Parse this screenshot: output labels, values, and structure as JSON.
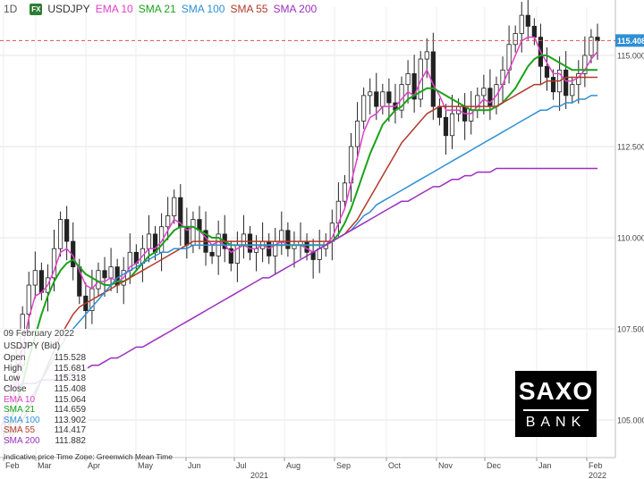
{
  "header": {
    "timeframe": "1D",
    "badge": "FX",
    "symbol": "USDJPY",
    "indicators": [
      {
        "label": "EMA 10",
        "color": "#e040c8"
      },
      {
        "label": "SMA 21",
        "color": "#1aa31a"
      },
      {
        "label": "SMA 100",
        "color": "#2f8fd4"
      },
      {
        "label": "SMA 55",
        "color": "#b23a2a"
      },
      {
        "label": "SMA 200",
        "color": "#9b2fc0"
      }
    ]
  },
  "price_tag": {
    "value": "115.408",
    "color": "#2f8fd4"
  },
  "info_panel": {
    "date": "09 February 2022",
    "title": "USDJPY (Bid)",
    "rows": [
      {
        "label": "Open",
        "value": "115.528"
      },
      {
        "label": "High",
        "value": "115.681"
      },
      {
        "label": "Low",
        "value": "115.318"
      },
      {
        "label": "Close",
        "value": "115.408"
      },
      {
        "label": "EMA 10",
        "value": "115.064"
      },
      {
        "label": "SMA 21",
        "value": "114.659"
      },
      {
        "label": "SMA 100",
        "value": "113.902"
      },
      {
        "label": "SMA 55",
        "value": "114.417"
      },
      {
        "label": "SMA 200",
        "value": "111.882"
      }
    ]
  },
  "footnote": "Indicative price    Time Zone: Greenwich Mean Time",
  "logo": {
    "line1": "SAXO",
    "line2": "BANK"
  },
  "chart_data": {
    "type": "line",
    "symbol": "USDJPY",
    "timeframe": "1D",
    "ylim": [
      104.3,
      117.3
    ],
    "y_ticks": [
      "115.000",
      "112.500",
      "110.000",
      "107.500",
      "105.000"
    ],
    "y_tick_values": [
      115.0,
      112.5,
      110.0,
      107.5,
      105.0
    ],
    "x_month_labels": [
      "Feb",
      "Mar",
      "Apr",
      "May",
      "Jun",
      "Jul",
      "Aug",
      "Sep",
      "Oct",
      "Nov",
      "Dec",
      "Jan",
      "Feb"
    ],
    "x_year_labels": [
      {
        "label": "2021",
        "after_month": 5
      },
      {
        "label": "2022",
        "after_month": 11
      }
    ],
    "last_price": 115.408,
    "close_path": [
      104.9,
      105.6,
      106.5,
      107.9,
      108.7,
      109.1,
      108.5,
      108.9,
      109.7,
      110.5,
      109.9,
      109.2,
      108.4,
      108.0,
      108.6,
      109.1,
      108.9,
      109.2,
      108.7,
      109.1,
      109.6,
      109.3,
      109.7,
      110.1,
      109.6,
      110.3,
      110.6,
      111.1,
      110.3,
      109.8,
      110.5,
      110.2,
      109.6,
      109.5,
      110.1,
      109.7,
      109.3,
      109.8,
      110.1,
      109.6,
      109.7,
      109.9,
      109.5,
      109.9,
      110.2,
      109.7,
      109.8,
      109.9,
      109.6,
      109.4,
      109.7,
      109.9,
      110.4,
      111.0,
      111.5,
      112.5,
      113.2,
      113.9,
      114.0,
      113.6,
      114.0,
      113.7,
      113.5,
      114.2,
      114.5,
      113.8,
      114.9,
      115.1,
      113.6,
      113.3,
      112.8,
      113.4,
      113.6,
      113.2,
      113.5,
      113.9,
      114.1,
      113.6,
      114.2,
      114.6,
      115.3,
      115.6,
      116.1,
      115.8,
      115.5,
      114.7,
      114.4,
      114.0,
      114.6,
      113.9,
      114.2,
      114.5,
      115.0,
      115.5,
      115.4
    ],
    "series": [
      {
        "name": "EMA 10",
        "color": "#e040c8",
        "values": [
          104.8,
          105.3,
          106.0,
          107.0,
          107.8,
          108.4,
          108.5,
          108.7,
          109.1,
          109.6,
          109.7,
          109.5,
          109.1,
          108.7,
          108.6,
          108.8,
          108.8,
          108.9,
          108.8,
          108.9,
          109.2,
          109.3,
          109.5,
          109.7,
          109.7,
          109.9,
          110.2,
          110.5,
          110.4,
          110.2,
          110.3,
          110.2,
          110.0,
          109.8,
          109.9,
          109.8,
          109.6,
          109.7,
          109.8,
          109.7,
          109.7,
          109.8,
          109.7,
          109.8,
          109.9,
          109.8,
          109.8,
          109.8,
          109.7,
          109.6,
          109.7,
          109.8,
          110.0,
          110.4,
          110.8,
          111.5,
          112.2,
          112.9,
          113.3,
          113.4,
          113.6,
          113.6,
          113.6,
          113.8,
          114.0,
          113.9,
          114.3,
          114.6,
          114.2,
          113.9,
          113.5,
          113.5,
          113.5,
          113.4,
          113.4,
          113.6,
          113.8,
          113.7,
          113.9,
          114.2,
          114.6,
          115.0,
          115.4,
          115.5,
          115.5,
          115.1,
          114.8,
          114.5,
          114.5,
          114.3,
          114.3,
          114.4,
          114.6,
          114.9,
          115.1
        ]
      },
      {
        "name": "SMA 21",
        "color": "#1aa31a",
        "values": [
          104.6,
          104.9,
          105.4,
          106.0,
          106.7,
          107.3,
          107.9,
          108.4,
          108.8,
          109.1,
          109.3,
          109.4,
          109.2,
          109.0,
          108.9,
          108.8,
          108.7,
          108.7,
          108.8,
          108.8,
          108.9,
          109.1,
          109.3,
          109.5,
          109.6,
          109.8,
          110.0,
          110.2,
          110.3,
          110.3,
          110.3,
          110.2,
          110.1,
          110.0,
          110.0,
          109.9,
          109.8,
          109.8,
          109.8,
          109.8,
          109.8,
          109.8,
          109.8,
          109.8,
          109.8,
          109.8,
          109.8,
          109.8,
          109.8,
          109.8,
          109.8,
          109.8,
          109.9,
          110.1,
          110.4,
          110.8,
          111.3,
          111.8,
          112.3,
          112.7,
          113.1,
          113.3,
          113.5,
          113.6,
          113.8,
          113.9,
          114.0,
          114.1,
          114.1,
          114.0,
          113.9,
          113.8,
          113.7,
          113.6,
          113.5,
          113.5,
          113.5,
          113.5,
          113.6,
          113.7,
          113.9,
          114.1,
          114.4,
          114.7,
          114.9,
          115.0,
          115.0,
          114.9,
          114.8,
          114.7,
          114.6,
          114.6,
          114.6,
          114.6,
          114.6
        ]
      },
      {
        "name": "SMA 55",
        "color": "#b23a2a",
        "values": [
          104.3,
          104.5,
          104.7,
          105.0,
          105.3,
          105.7,
          106.1,
          106.5,
          106.9,
          107.3,
          107.6,
          107.9,
          108.1,
          108.2,
          108.3,
          108.4,
          108.5,
          108.6,
          108.7,
          108.8,
          108.9,
          109.0,
          109.1,
          109.2,
          109.3,
          109.4,
          109.5,
          109.6,
          109.7,
          109.8,
          109.9,
          109.9,
          109.9,
          109.9,
          109.9,
          109.9,
          109.9,
          109.9,
          109.9,
          109.9,
          109.9,
          109.9,
          109.9,
          109.9,
          109.9,
          109.9,
          109.9,
          109.9,
          109.9,
          109.9,
          109.9,
          109.9,
          109.9,
          110.0,
          110.1,
          110.3,
          110.5,
          110.8,
          111.1,
          111.4,
          111.7,
          112.0,
          112.3,
          112.6,
          112.8,
          113.0,
          113.2,
          113.4,
          113.5,
          113.6,
          113.6,
          113.6,
          113.6,
          113.6,
          113.6,
          113.6,
          113.6,
          113.6,
          113.6,
          113.7,
          113.8,
          113.9,
          114.0,
          114.1,
          114.2,
          114.2,
          114.3,
          114.3,
          114.3,
          114.4,
          114.4,
          114.4,
          114.4,
          114.4,
          114.4
        ]
      },
      {
        "name": "SMA 100",
        "color": "#2f8fd4",
        "values": [
          104.3,
          104.6,
          104.9,
          105.2,
          105.5,
          105.8,
          106.1,
          106.4,
          106.7,
          107.0,
          107.3,
          107.5,
          107.7,
          107.9,
          108.1,
          108.3,
          108.5,
          108.7,
          108.9,
          109.0,
          109.1,
          109.2,
          109.3,
          109.4,
          109.5,
          109.6,
          109.6,
          109.7,
          109.7,
          109.7,
          109.8,
          109.8,
          109.8,
          109.8,
          109.8,
          109.8,
          109.8,
          109.8,
          109.8,
          109.8,
          109.8,
          109.8,
          109.8,
          109.8,
          109.8,
          109.8,
          109.8,
          109.8,
          109.8,
          109.8,
          109.8,
          109.8,
          109.9,
          110.0,
          110.1,
          110.2,
          110.4,
          110.6,
          110.7,
          110.9,
          111.0,
          111.1,
          111.2,
          111.3,
          111.4,
          111.5,
          111.6,
          111.7,
          111.8,
          111.9,
          112.0,
          112.1,
          112.2,
          112.3,
          112.4,
          112.5,
          112.6,
          112.7,
          112.8,
          112.9,
          113.0,
          113.1,
          113.2,
          113.3,
          113.4,
          113.5,
          113.5,
          113.6,
          113.6,
          113.7,
          113.7,
          113.8,
          113.8,
          113.9,
          113.9
        ]
      },
      {
        "name": "SMA 200",
        "color": "#9b2fc0",
        "values": [
          105.9,
          105.9,
          105.9,
          106.0,
          106.0,
          106.0,
          106.1,
          106.1,
          106.1,
          106.2,
          106.2,
          106.3,
          106.3,
          106.4,
          106.5,
          106.5,
          106.6,
          106.7,
          106.7,
          106.8,
          106.9,
          107.0,
          107.0,
          107.1,
          107.2,
          107.3,
          107.4,
          107.5,
          107.6,
          107.7,
          107.8,
          107.9,
          108.0,
          108.1,
          108.2,
          108.3,
          108.4,
          108.5,
          108.6,
          108.7,
          108.8,
          108.9,
          108.9,
          109.0,
          109.1,
          109.2,
          109.3,
          109.4,
          109.5,
          109.6,
          109.7,
          109.8,
          109.9,
          110.0,
          110.1,
          110.2,
          110.3,
          110.4,
          110.5,
          110.6,
          110.7,
          110.8,
          110.9,
          111.0,
          111.0,
          111.1,
          111.2,
          111.3,
          111.4,
          111.4,
          111.5,
          111.6,
          111.6,
          111.7,
          111.7,
          111.8,
          111.8,
          111.8,
          111.9,
          111.9,
          111.9,
          111.9,
          111.9,
          111.9,
          111.9,
          111.9,
          111.9,
          111.9,
          111.9,
          111.9,
          111.9,
          111.9,
          111.9,
          111.9,
          111.9
        ]
      }
    ],
    "grid": true,
    "legend": "top-left"
  }
}
